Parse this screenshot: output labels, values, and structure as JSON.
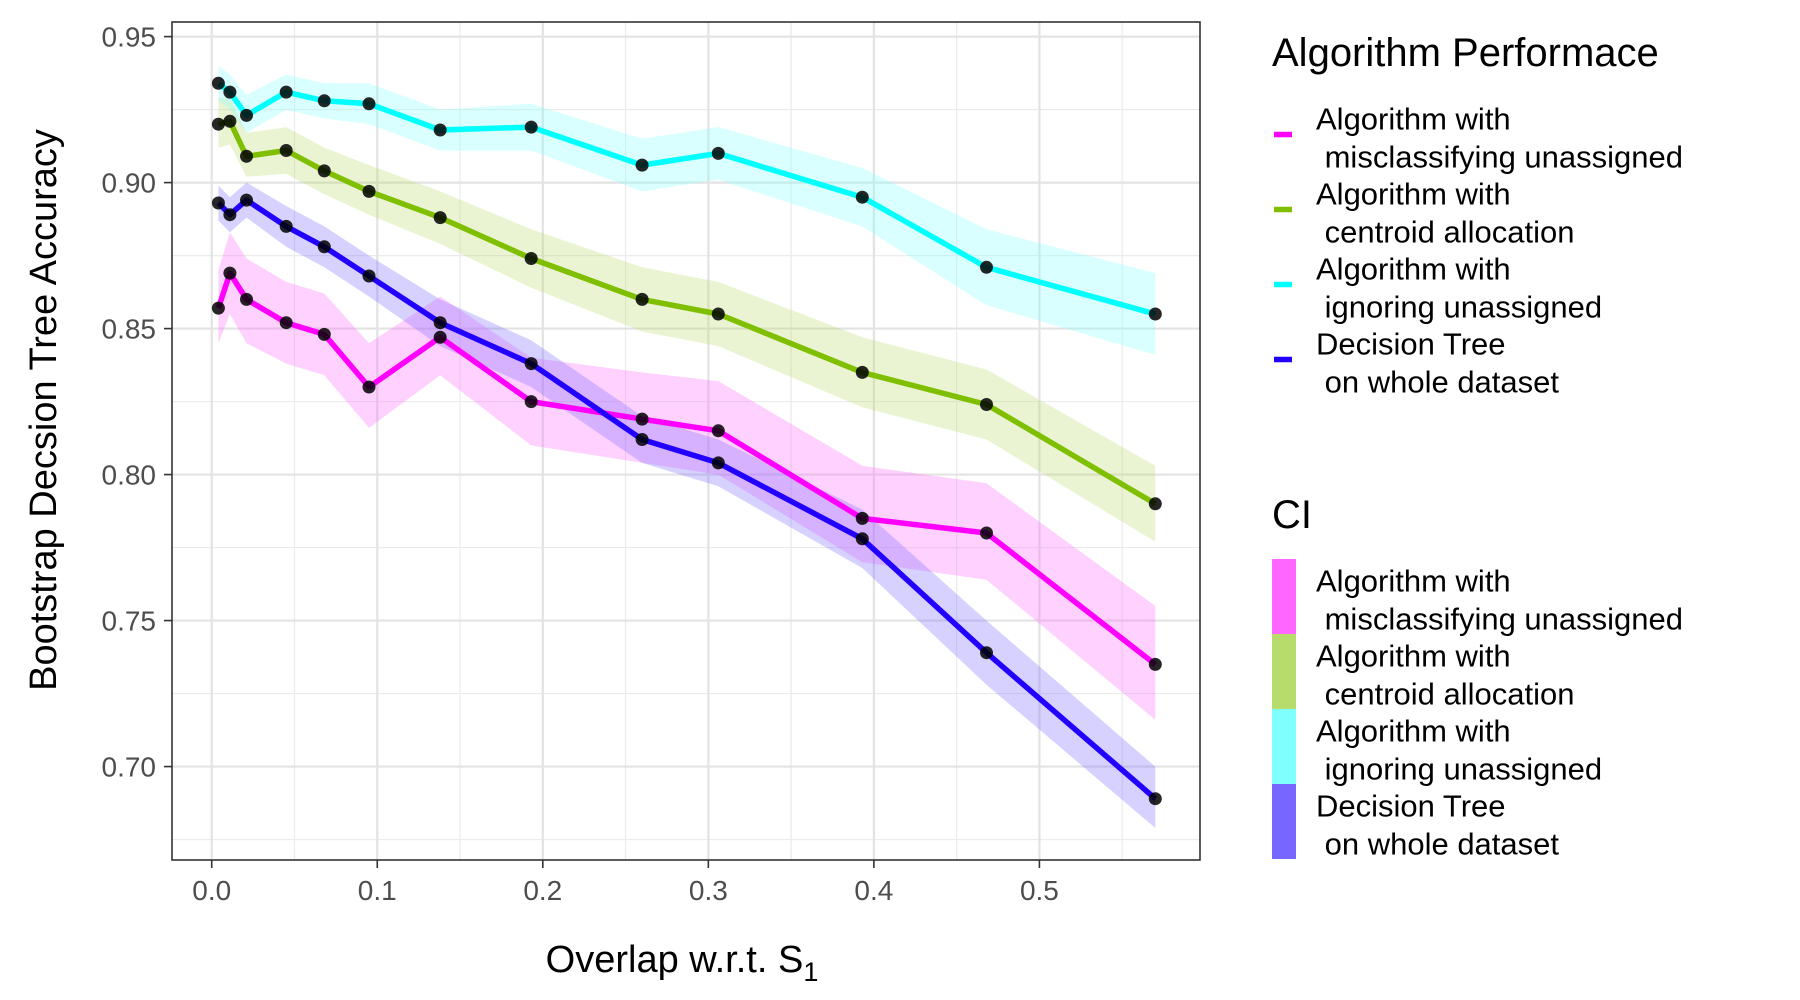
{
  "chart_data": {
    "type": "line",
    "title": "",
    "xlabel": "Overlap w.r.t. S",
    "xlabel_subscript": "1",
    "ylabel": "Bootstrap Decsion Tree Accuracy",
    "xlim": [
      -0.024,
      0.597
    ],
    "ylim": [
      0.668,
      0.955
    ],
    "x_ticks": [
      0.0,
      0.1,
      0.2,
      0.3,
      0.4,
      0.5
    ],
    "x_tick_labels": [
      "0.0",
      "0.1",
      "0.2",
      "0.3",
      "0.4",
      "0.5"
    ],
    "y_ticks": [
      0.7,
      0.75,
      0.8,
      0.85,
      0.9,
      0.95
    ],
    "y_tick_labels": [
      "0.70",
      "0.75",
      "0.80",
      "0.85",
      "0.90",
      "0.95"
    ],
    "grid": true,
    "legend_position": "right",
    "x": [
      0.004,
      0.011,
      0.021,
      0.045,
      0.068,
      0.095,
      0.138,
      0.193,
      0.26,
      0.306,
      0.393,
      0.468,
      0.57
    ],
    "series": [
      {
        "name": "Algorithm with\n misclassifying unassigned",
        "color": "#ff00ff",
        "ci_color": "#ff66ff",
        "values": [
          0.857,
          0.869,
          0.86,
          0.852,
          0.848,
          0.83,
          0.847,
          0.825,
          0.819,
          0.815,
          0.785,
          0.78,
          0.735
        ],
        "lower": [
          0.845,
          0.855,
          0.845,
          0.838,
          0.834,
          0.816,
          0.834,
          0.81,
          0.804,
          0.8,
          0.77,
          0.764,
          0.716
        ],
        "upper": [
          0.87,
          0.883,
          0.874,
          0.866,
          0.862,
          0.845,
          0.861,
          0.84,
          0.835,
          0.832,
          0.803,
          0.797,
          0.755
        ]
      },
      {
        "name": "Algorithm with\n centroid allocation",
        "color": "#7fbf00",
        "ci_color": "#b8dc6b",
        "values": [
          0.92,
          0.921,
          0.909,
          0.911,
          0.904,
          0.897,
          0.888,
          0.874,
          0.86,
          0.855,
          0.835,
          0.824,
          0.79
        ],
        "lower": [
          0.912,
          0.913,
          0.902,
          0.903,
          0.896,
          0.889,
          0.879,
          0.864,
          0.849,
          0.844,
          0.823,
          0.812,
          0.777
        ],
        "upper": [
          0.929,
          0.929,
          0.917,
          0.919,
          0.912,
          0.906,
          0.897,
          0.884,
          0.871,
          0.866,
          0.847,
          0.836,
          0.803
        ]
      },
      {
        "name": "Algorithm with\n ignoring unassigned",
        "color": "#00ffff",
        "ci_color": "#80ffff",
        "values": [
          0.934,
          0.931,
          0.923,
          0.931,
          0.928,
          0.927,
          0.918,
          0.919,
          0.906,
          0.91,
          0.895,
          0.871,
          0.855
        ],
        "lower": [
          0.928,
          0.925,
          0.917,
          0.925,
          0.922,
          0.92,
          0.911,
          0.911,
          0.897,
          0.901,
          0.885,
          0.858,
          0.841
        ],
        "upper": [
          0.94,
          0.937,
          0.93,
          0.937,
          0.934,
          0.934,
          0.925,
          0.927,
          0.915,
          0.919,
          0.905,
          0.884,
          0.869
        ]
      },
      {
        "name": "Decision Tree\n on whole dataset",
        "color": "#2200ff",
        "ci_color": "#7766ff",
        "values": [
          0.893,
          0.889,
          0.894,
          0.885,
          0.878,
          0.868,
          0.852,
          0.838,
          0.812,
          0.804,
          0.778,
          0.739,
          0.689
        ],
        "lower": [
          0.887,
          0.883,
          0.888,
          0.878,
          0.871,
          0.861,
          0.844,
          0.83,
          0.804,
          0.796,
          0.768,
          0.728,
          0.679
        ],
        "upper": [
          0.899,
          0.895,
          0.9,
          0.892,
          0.885,
          0.875,
          0.86,
          0.846,
          0.82,
          0.812,
          0.788,
          0.75,
          0.7
        ]
      }
    ],
    "legends": [
      {
        "title": "Algorithm Performace",
        "kind": "line",
        "entries": [
          "Algorithm with\n misclassifying unassigned",
          "Algorithm with\n centroid allocation",
          "Algorithm with\n ignoring unassigned",
          "Decision Tree\n on whole dataset"
        ]
      },
      {
        "title": "CI",
        "kind": "fill",
        "entries": [
          "Algorithm with\n misclassifying unassigned",
          "Algorithm with\n centroid allocation",
          "Algorithm with\n ignoring unassigned",
          "Decision Tree\n on whole dataset"
        ]
      }
    ]
  }
}
